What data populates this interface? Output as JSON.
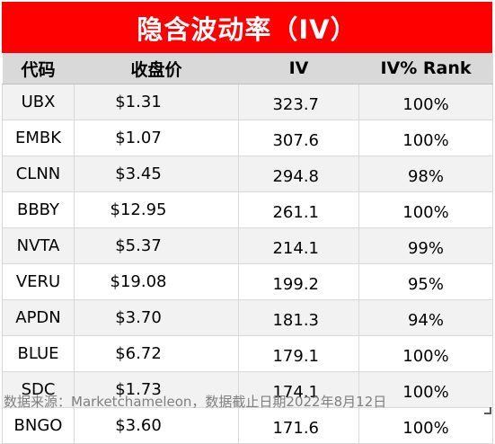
{
  "chart_data": {
    "type": "table",
    "title": "隐含波动率（IV）",
    "columns": [
      "代码",
      "收盘价",
      "IV",
      "IV% Rank"
    ],
    "rows": [
      {
        "ticker": "UBX",
        "close": "$1.31",
        "iv": "323.7",
        "rank": "100%"
      },
      {
        "ticker": "EMBK",
        "close": "$1.07",
        "iv": "307.6",
        "rank": "100%"
      },
      {
        "ticker": "CLNN",
        "close": "$3.45",
        "iv": "294.8",
        "rank": "98%"
      },
      {
        "ticker": "BBBY",
        "close": "$12.95",
        "iv": "261.1",
        "rank": "100%"
      },
      {
        "ticker": "NVTA",
        "close": "$5.37",
        "iv": "214.1",
        "rank": "99%"
      },
      {
        "ticker": "VERU",
        "close": "$19.08",
        "iv": "199.2",
        "rank": "95%"
      },
      {
        "ticker": "APDN",
        "close": "$3.70",
        "iv": "181.3",
        "rank": "94%"
      },
      {
        "ticker": "BLUE",
        "close": "$6.72",
        "iv": "179.1",
        "rank": "100%"
      },
      {
        "ticker": "SDC",
        "close": "$1.73",
        "iv": "174.1",
        "rank": "100%"
      },
      {
        "ticker": "BNGO",
        "close": "$3.60",
        "iv": "171.6",
        "rank": "100%"
      }
    ],
    "source": "数据来源：Marketchameleon，数据截止日期2022年8月12日",
    "colors": {
      "title_bg": "#ff0000",
      "header_bg": "#d9d9d9",
      "alt_row_bg": "#f2f2f2"
    }
  }
}
